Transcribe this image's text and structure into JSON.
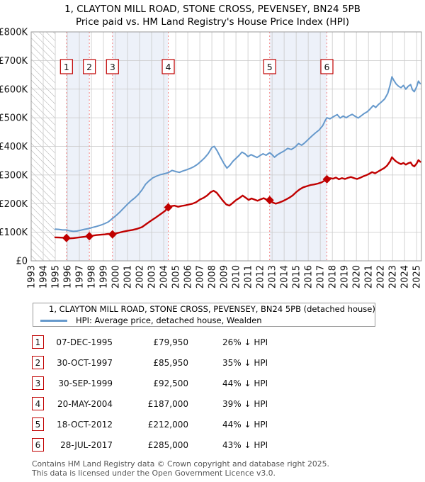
{
  "title": "1, CLAYTON MILL ROAD, STONE CROSS, PEVENSEY, BN24 5PB",
  "subtitle": "Price paid vs. HM Land Registry's House Price Index (HPI)",
  "chart_data": {
    "type": "line",
    "x_axis": {
      "lim": [
        1993,
        2025.4
      ],
      "ticks": [
        1993,
        1994,
        1995,
        1996,
        1997,
        1998,
        1999,
        2000,
        2001,
        2002,
        2003,
        2004,
        2005,
        2006,
        2007,
        2008,
        2009,
        2010,
        2011,
        2012,
        2013,
        2014,
        2015,
        2016,
        2017,
        2018,
        2019,
        2020,
        2021,
        2022,
        2023,
        2024,
        2025
      ]
    },
    "y_axis": {
      "lim": [
        0,
        800
      ],
      "unit": "£ thousands",
      "ticks": [
        0,
        100,
        200,
        300,
        400,
        500,
        600,
        700,
        800
      ],
      "tick_labels": [
        "£0",
        "£100K",
        "£200K",
        "£300K",
        "£400K",
        "£500K",
        "£600K",
        "£700K",
        "£800K"
      ]
    },
    "grid": true,
    "hatch_region": [
      1993,
      1995.0
    ],
    "shaded_bands": [
      [
        1995.93,
        1997.83
      ],
      [
        1999.75,
        2004.38
      ],
      [
        2012.8,
        2017.55
      ]
    ],
    "band_color": "#edf1f9",
    "dashed_line_color": "#f48080",
    "series": [
      {
        "id": "price-paid",
        "label": "1, CLAYTON MILL ROAD, STONE CROSS, PEVENSEY, BN24 5PB (detached house)",
        "color": "#c00000",
        "width": 2.4,
        "points": [
          [
            1995.0,
            82
          ],
          [
            1995.3,
            81.5
          ],
          [
            1995.6,
            81
          ],
          [
            1995.93,
            80
          ],
          [
            1996.2,
            78.5
          ],
          [
            1996.5,
            79.5
          ],
          [
            1996.8,
            81
          ],
          [
            1997.1,
            82.5
          ],
          [
            1997.4,
            84
          ],
          [
            1997.83,
            86
          ],
          [
            1998.1,
            88
          ],
          [
            1998.4,
            90
          ],
          [
            1998.8,
            91.5
          ],
          [
            1999.1,
            92.5
          ],
          [
            1999.4,
            94
          ],
          [
            1999.75,
            92.5
          ],
          [
            2000.05,
            96
          ],
          [
            2000.35,
            99
          ],
          [
            2000.65,
            102
          ],
          [
            2001.0,
            105
          ],
          [
            2001.4,
            108
          ],
          [
            2001.8,
            112
          ],
          [
            2002.2,
            118
          ],
          [
            2002.6,
            130
          ],
          [
            2003.0,
            142
          ],
          [
            2003.4,
            153
          ],
          [
            2003.8,
            165
          ],
          [
            2004.1,
            174
          ],
          [
            2004.38,
            187
          ],
          [
            2004.6,
            191
          ],
          [
            2004.9,
            193
          ],
          [
            2005.2,
            189
          ],
          [
            2005.5,
            192
          ],
          [
            2005.8,
            194
          ],
          [
            2006.1,
            197
          ],
          [
            2006.4,
            200
          ],
          [
            2006.7,
            205
          ],
          [
            2007.0,
            214
          ],
          [
            2007.3,
            220
          ],
          [
            2007.6,
            228
          ],
          [
            2007.9,
            240
          ],
          [
            2008.15,
            245
          ],
          [
            2008.4,
            238
          ],
          [
            2008.65,
            225
          ],
          [
            2008.9,
            211
          ],
          [
            2009.2,
            197
          ],
          [
            2009.45,
            193
          ],
          [
            2009.7,
            201
          ],
          [
            2010.0,
            212
          ],
          [
            2010.3,
            220
          ],
          [
            2010.55,
            228
          ],
          [
            2010.8,
            221
          ],
          [
            2011.05,
            213
          ],
          [
            2011.3,
            218
          ],
          [
            2011.55,
            214
          ],
          [
            2011.8,
            210
          ],
          [
            2012.05,
            215
          ],
          [
            2012.3,
            219
          ],
          [
            2012.55,
            214
          ],
          [
            2012.8,
            212
          ],
          [
            2013.05,
            204
          ],
          [
            2013.3,
            200
          ],
          [
            2013.55,
            203
          ],
          [
            2013.8,
            207
          ],
          [
            2014.1,
            213
          ],
          [
            2014.4,
            220
          ],
          [
            2014.7,
            228
          ],
          [
            2015.0,
            240
          ],
          [
            2015.3,
            250
          ],
          [
            2015.6,
            257
          ],
          [
            2015.9,
            261
          ],
          [
            2016.2,
            265
          ],
          [
            2016.5,
            267
          ],
          [
            2016.8,
            270
          ],
          [
            2017.1,
            274
          ],
          [
            2017.35,
            280
          ],
          [
            2017.55,
            285
          ],
          [
            2017.8,
            289
          ],
          [
            2018.05,
            287
          ],
          [
            2018.3,
            291
          ],
          [
            2018.55,
            285
          ],
          [
            2018.8,
            289
          ],
          [
            2019.05,
            286
          ],
          [
            2019.3,
            290
          ],
          [
            2019.55,
            293
          ],
          [
            2019.8,
            289
          ],
          [
            2020.05,
            286
          ],
          [
            2020.3,
            290
          ],
          [
            2020.55,
            295
          ],
          [
            2020.8,
            299
          ],
          [
            2021.05,
            304
          ],
          [
            2021.3,
            310
          ],
          [
            2021.55,
            306
          ],
          [
            2021.8,
            312
          ],
          [
            2022.05,
            318
          ],
          [
            2022.3,
            324
          ],
          [
            2022.55,
            333
          ],
          [
            2022.8,
            348
          ],
          [
            2022.95,
            362
          ],
          [
            2023.1,
            355
          ],
          [
            2023.3,
            347
          ],
          [
            2023.5,
            342
          ],
          [
            2023.7,
            338
          ],
          [
            2023.9,
            342
          ],
          [
            2024.1,
            336
          ],
          [
            2024.3,
            341
          ],
          [
            2024.5,
            344
          ],
          [
            2024.65,
            334
          ],
          [
            2024.8,
            330
          ],
          [
            2025.0,
            340
          ],
          [
            2025.15,
            352
          ],
          [
            2025.3,
            346
          ]
        ]
      },
      {
        "id": "hpi",
        "label": "HPI: Average price, detached house, Wealden",
        "color": "#6699cc",
        "width": 2,
        "points": [
          [
            1995.0,
            111
          ],
          [
            1995.3,
            110
          ],
          [
            1995.6,
            108
          ],
          [
            1995.9,
            108
          ],
          [
            1996.2,
            105
          ],
          [
            1996.5,
            103
          ],
          [
            1996.8,
            104
          ],
          [
            1997.1,
            107
          ],
          [
            1997.4,
            110
          ],
          [
            1997.8,
            113
          ],
          [
            1998.1,
            117
          ],
          [
            1998.4,
            120
          ],
          [
            1998.8,
            125
          ],
          [
            1999.1,
            130
          ],
          [
            1999.4,
            136
          ],
          [
            1999.75,
            148
          ],
          [
            2000.1,
            160
          ],
          [
            2000.4,
            172
          ],
          [
            2000.7,
            185
          ],
          [
            2001.0,
            198
          ],
          [
            2001.3,
            210
          ],
          [
            2001.6,
            220
          ],
          [
            2001.9,
            232
          ],
          [
            2002.2,
            248
          ],
          [
            2002.5,
            268
          ],
          [
            2002.8,
            280
          ],
          [
            2003.1,
            290
          ],
          [
            2003.4,
            296
          ],
          [
            2003.7,
            301
          ],
          [
            2004.0,
            304
          ],
          [
            2004.38,
            308
          ],
          [
            2004.7,
            316
          ],
          [
            2005.0,
            312
          ],
          [
            2005.3,
            309
          ],
          [
            2005.6,
            314
          ],
          [
            2005.9,
            318
          ],
          [
            2006.2,
            323
          ],
          [
            2006.5,
            329
          ],
          [
            2006.8,
            337
          ],
          [
            2007.1,
            348
          ],
          [
            2007.4,
            360
          ],
          [
            2007.7,
            375
          ],
          [
            2008.0,
            396
          ],
          [
            2008.2,
            400
          ],
          [
            2008.45,
            384
          ],
          [
            2008.7,
            363
          ],
          [
            2009.0,
            340
          ],
          [
            2009.25,
            324
          ],
          [
            2009.5,
            334
          ],
          [
            2009.75,
            348
          ],
          [
            2010.0,
            358
          ],
          [
            2010.25,
            368
          ],
          [
            2010.5,
            380
          ],
          [
            2010.75,
            374
          ],
          [
            2011.0,
            364
          ],
          [
            2011.25,
            371
          ],
          [
            2011.5,
            366
          ],
          [
            2011.75,
            361
          ],
          [
            2012.0,
            368
          ],
          [
            2012.25,
            374
          ],
          [
            2012.5,
            369
          ],
          [
            2012.8,
            378
          ],
          [
            2013.0,
            371
          ],
          [
            2013.2,
            362
          ],
          [
            2013.45,
            371
          ],
          [
            2013.7,
            377
          ],
          [
            2014.0,
            384
          ],
          [
            2014.3,
            393
          ],
          [
            2014.6,
            389
          ],
          [
            2014.9,
            397
          ],
          [
            2015.2,
            410
          ],
          [
            2015.45,
            404
          ],
          [
            2015.7,
            412
          ],
          [
            2016.0,
            424
          ],
          [
            2016.3,
            436
          ],
          [
            2016.6,
            447
          ],
          [
            2016.9,
            457
          ],
          [
            2017.2,
            472
          ],
          [
            2017.4,
            490
          ],
          [
            2017.55,
            500
          ],
          [
            2017.8,
            496
          ],
          [
            2018.1,
            504
          ],
          [
            2018.4,
            511
          ],
          [
            2018.65,
            499
          ],
          [
            2018.9,
            506
          ],
          [
            2019.15,
            500
          ],
          [
            2019.4,
            507
          ],
          [
            2019.65,
            512
          ],
          [
            2019.9,
            505
          ],
          [
            2020.15,
            499
          ],
          [
            2020.4,
            507
          ],
          [
            2020.65,
            515
          ],
          [
            2020.9,
            521
          ],
          [
            2021.15,
            531
          ],
          [
            2021.4,
            543
          ],
          [
            2021.6,
            536
          ],
          [
            2021.85,
            547
          ],
          [
            2022.1,
            556
          ],
          [
            2022.35,
            566
          ],
          [
            2022.6,
            585
          ],
          [
            2022.8,
            615
          ],
          [
            2022.95,
            643
          ],
          [
            2023.1,
            631
          ],
          [
            2023.3,
            618
          ],
          [
            2023.5,
            610
          ],
          [
            2023.7,
            605
          ],
          [
            2023.9,
            613
          ],
          [
            2024.1,
            600
          ],
          [
            2024.3,
            610
          ],
          [
            2024.5,
            616
          ],
          [
            2024.65,
            598
          ],
          [
            2024.8,
            591
          ],
          [
            2025.0,
            608
          ],
          [
            2025.15,
            628
          ],
          [
            2025.3,
            619
          ]
        ]
      }
    ],
    "sales": [
      {
        "n": "1",
        "year": 1995.93,
        "value": 80
      },
      {
        "n": "2",
        "year": 1997.83,
        "value": 86
      },
      {
        "n": "3",
        "year": 1999.75,
        "value": 92.5
      },
      {
        "n": "4",
        "year": 2004.38,
        "value": 187
      },
      {
        "n": "5",
        "year": 2012.8,
        "value": 212
      },
      {
        "n": "6",
        "year": 2017.55,
        "value": 285
      }
    ]
  },
  "table": {
    "rows": [
      {
        "num": "1",
        "date": "07-DEC-1995",
        "price": "£79,950",
        "hpi_diff": "26% ↓ HPI"
      },
      {
        "num": "2",
        "date": "30-OCT-1997",
        "price": "£85,950",
        "hpi_diff": "35% ↓ HPI"
      },
      {
        "num": "3",
        "date": "30-SEP-1999",
        "price": "£92,500",
        "hpi_diff": "44% ↓ HPI"
      },
      {
        "num": "4",
        "date": "20-MAY-2004",
        "price": "£187,000",
        "hpi_diff": "39% ↓ HPI"
      },
      {
        "num": "5",
        "date": "18-OCT-2012",
        "price": "£212,000",
        "hpi_diff": "44% ↓ HPI"
      },
      {
        "num": "6",
        "date": "28-JUL-2017",
        "price": "£285,000",
        "hpi_diff": "43% ↓ HPI"
      }
    ]
  },
  "footer": {
    "line1": "Contains HM Land Registry data © Crown copyright and database right 2025.",
    "line2": "This data is licensed under the Open Government Licence v3.0."
  }
}
